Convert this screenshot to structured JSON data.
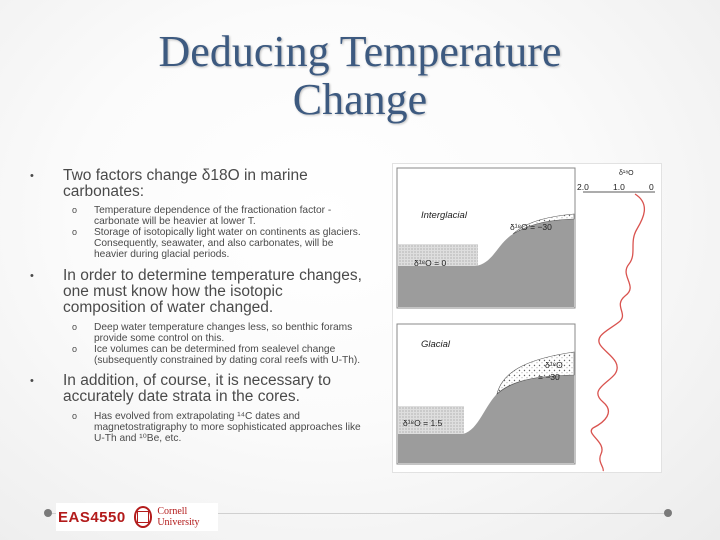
{
  "title": {
    "line1": "Deducing Temperature",
    "line2": "Change"
  },
  "bullets": [
    {
      "text": "Two factors change δ18O in marine carbonates:",
      "subs": [
        "Temperature dependence of the fractionation factor - carbonate will be heavier at lower T.",
        "Storage of isotopically light water on continents as glaciers. Consequently, seawater, and also carbonates, will be heavier during glacial periods."
      ]
    },
    {
      "text": "In order to determine temperature changes, one must know how the isotopic composition of water changed.",
      "subs": [
        "Deep water temperature changes less, so benthic forams provide some control on this.",
        "Ice volumes can be determined from sealevel change (subsequently constrained by dating coral reefs with U-Th)."
      ]
    },
    {
      "text": "In addition, of course, it is necessary to accurately date strata in the cores.",
      "subs": [
        "Has evolved from extrapolating ¹⁴C dates and magnetostratigraphy to more sophisticated approaches like U-Th and ¹⁰Be, etc."
      ]
    }
  ],
  "figure": {
    "interglacial_label": "Interglacial",
    "interglacial_ice": "δ¹⁸O = −30",
    "interglacial_sea": "δ¹⁸O = 0",
    "glacial_label": "Glacial",
    "glacial_ice_1": "δ¹⁸O",
    "glacial_ice_2": "= −30",
    "glacial_sea": "δ¹⁸O = 1.5",
    "curve_label": "δ¹⁸O",
    "ticks": [
      "2.0",
      "1.0",
      "0"
    ],
    "curve_color": "#d9534f"
  },
  "footer": {
    "course": "EAS4550",
    "university": "Cornell University"
  }
}
